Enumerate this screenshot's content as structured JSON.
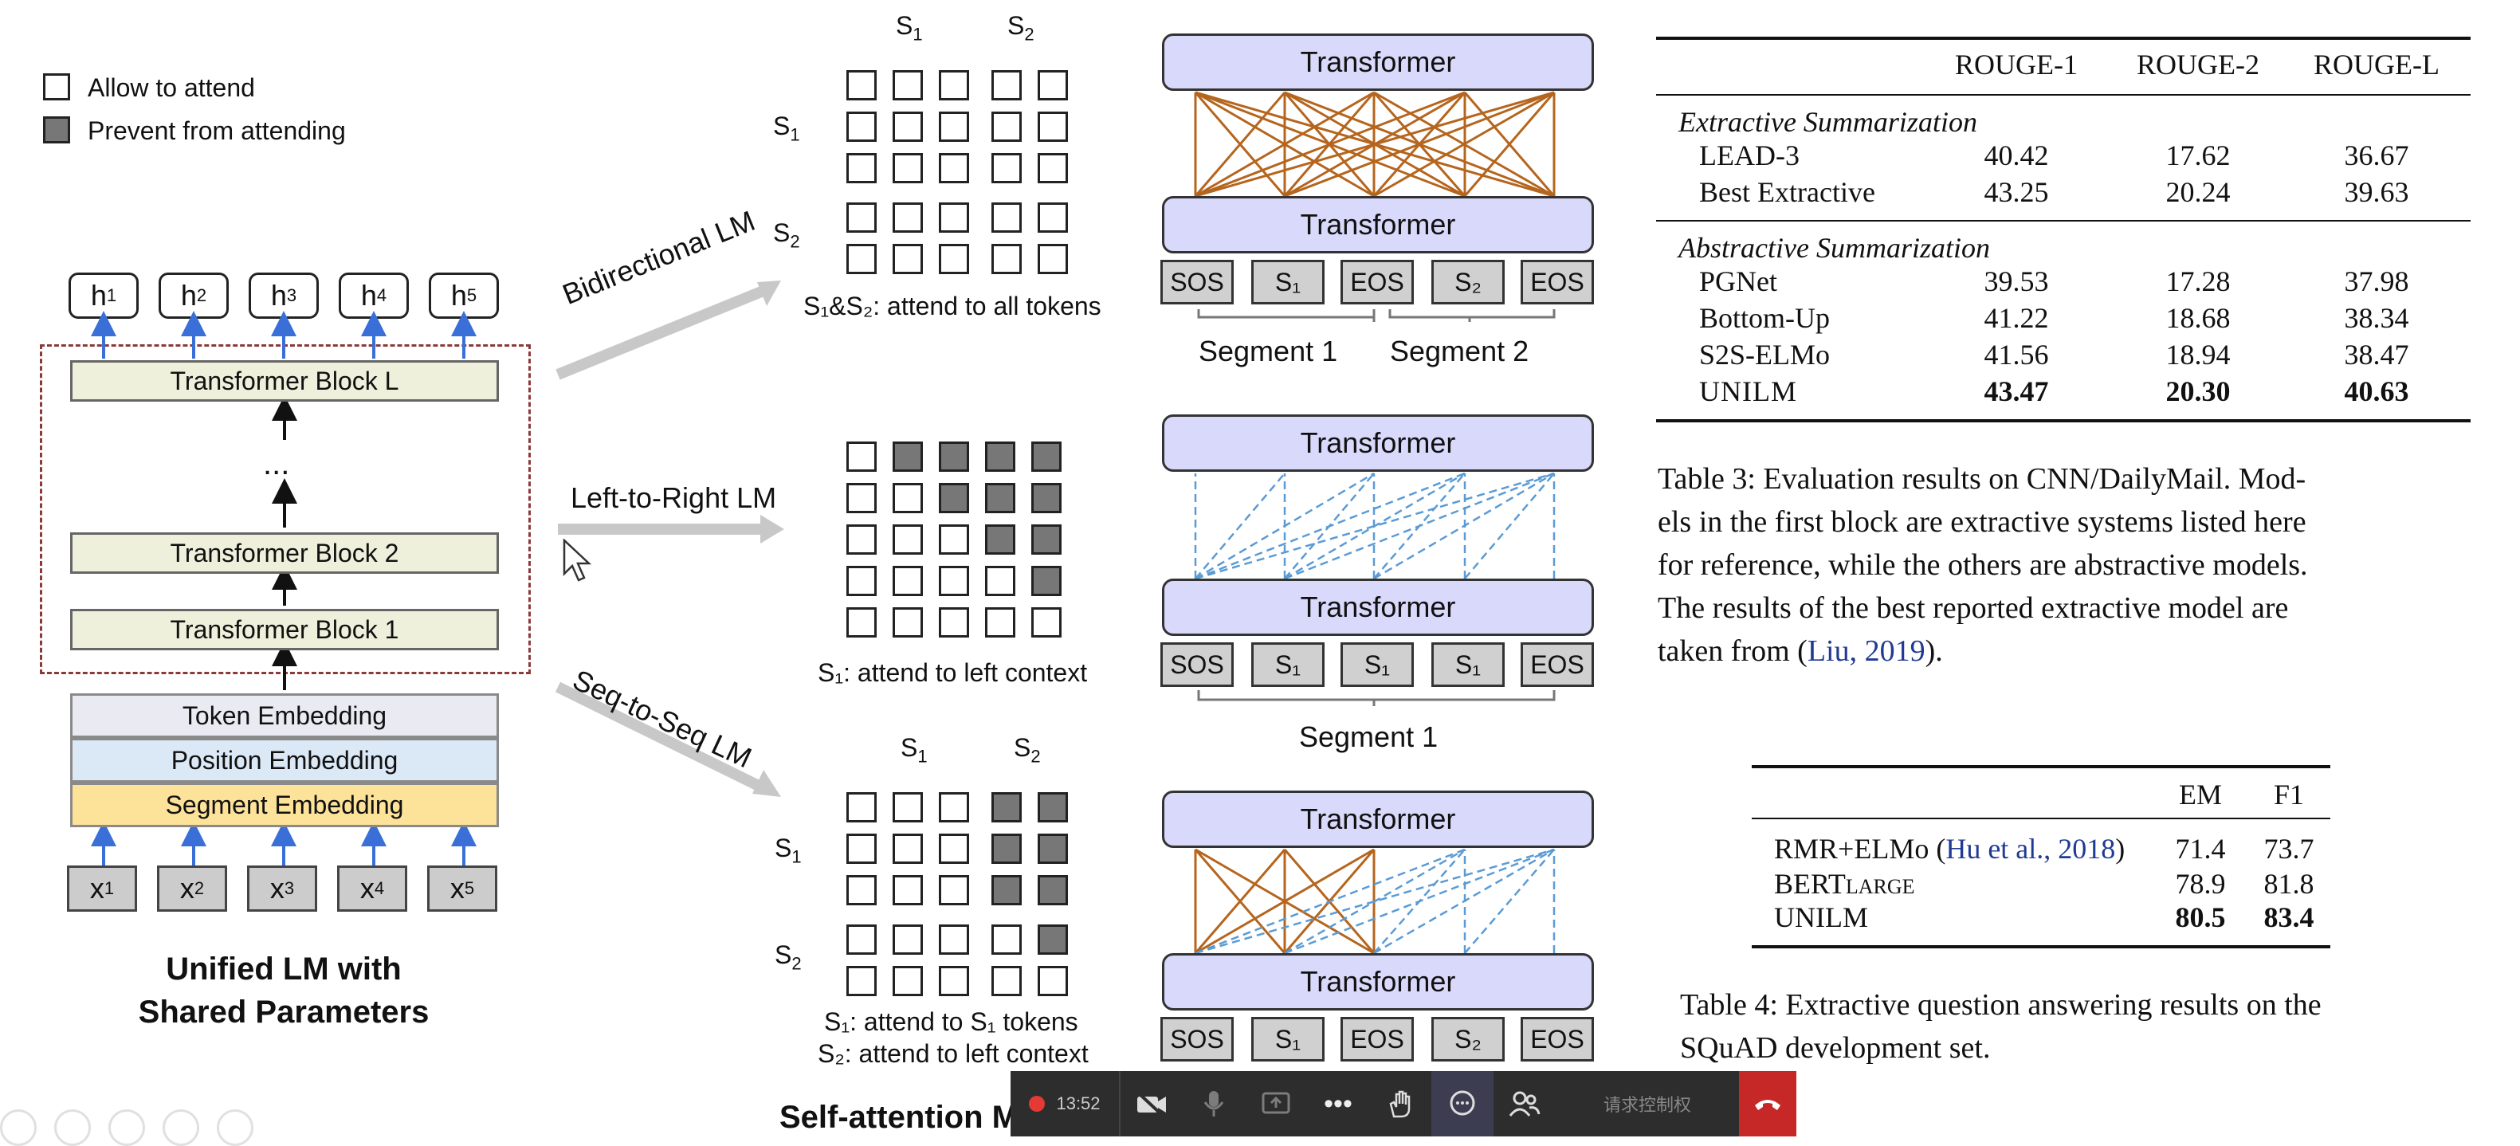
{
  "legend": {
    "allow": "Allow to attend",
    "prevent": "Prevent from attending"
  },
  "model": {
    "outputs": [
      "h",
      "h",
      "h",
      "h",
      "h"
    ],
    "output_subs": [
      "1",
      "2",
      "3",
      "4",
      "5"
    ],
    "blocks": [
      "Transformer Block L",
      "Transformer Block 2",
      "Transformer Block 1"
    ],
    "ellipsis": "...",
    "embeddings": {
      "token": "Token Embedding",
      "position": "Position Embedding",
      "segment": "Segment Embedding"
    },
    "inputs": [
      "x",
      "x",
      "x",
      "x",
      "x"
    ],
    "input_subs": [
      "1",
      "2",
      "3",
      "4",
      "5"
    ],
    "caption_line1": "Unified LM with",
    "caption_line2": "Shared Parameters"
  },
  "arrows": {
    "bidirectional": "Bidirectional LM",
    "l2r": "Left-to-Right LM",
    "s2s": "Seq-to-Seq LM"
  },
  "masks": {
    "s": "S",
    "sub1": "1",
    "sub2": "2",
    "bi_text": "S₁&S₂: attend to all tokens",
    "l2r_text": "S₁: attend to left context",
    "s2s_text1": "S₁: attend to S₁ tokens",
    "s2s_text2": "S₂: attend to left context",
    "caption": "Self-attention Masks"
  },
  "transformer": {
    "label": "Transformer",
    "bi_tokens": [
      "SOS",
      "S₁",
      "EOS",
      "S₂",
      "EOS"
    ],
    "l2r_tokens": [
      "SOS",
      "S₁",
      "S₁",
      "S₁",
      "EOS"
    ],
    "s2s_tokens": [
      "SOS",
      "S₁",
      "EOS",
      "S₂",
      "EOS"
    ],
    "segment1": "Segment 1",
    "segment2": "Segment 2",
    "colors": {
      "bidirectional": "#b5651d",
      "left_to_right": "#5b9bd5"
    }
  },
  "table3": {
    "headers": [
      "ROUGE-1",
      "ROUGE-2",
      "ROUGE-L"
    ],
    "group1": "Extractive Summarization",
    "rows1": [
      {
        "name": "LEAD-3",
        "v": [
          "40.42",
          "17.62",
          "36.67"
        ]
      },
      {
        "name": "Best Extractive",
        "v": [
          "43.25",
          "20.24",
          "39.63"
        ]
      }
    ],
    "group2": "Abstractive Summarization",
    "rows2": [
      {
        "name": "PGNet",
        "v": [
          "39.53",
          "17.28",
          "37.98"
        ]
      },
      {
        "name": "Bottom-Up",
        "v": [
          "41.22",
          "18.68",
          "38.34"
        ]
      },
      {
        "name": "S2S-ELMo",
        "v": [
          "41.56",
          "18.94",
          "38.47"
        ]
      },
      {
        "name": "UNILM",
        "v": [
          "43.47",
          "20.30",
          "40.63"
        ]
      }
    ],
    "caption_lines": [
      "Table 3: Evaluation results on CNN/DailyMail. Mod-",
      "els in the first block are extractive systems listed here",
      "for reference, while the others are abstractive models.",
      "The results of the best reported extractive model are"
    ],
    "caption_last_prefix": "taken from (",
    "caption_last_link": "Liu, 2019",
    "caption_last_suffix": ")."
  },
  "table4": {
    "headers": [
      "EM",
      "F1"
    ],
    "row1_name": "RMR+ELMo (",
    "row1_link": "Hu et al., 2018",
    "row1_suffix": ")",
    "row1_v": [
      "71.4",
      "73.7"
    ],
    "row2_name": "BERT",
    "row2_sub": "LARGE",
    "row2_v": [
      "78.9",
      "81.8"
    ],
    "row3_name": "UNILM",
    "row3_v": [
      "80.5",
      "83.4"
    ],
    "caption_line1": "Table 4: Extractive question answering results on the",
    "caption_line2": "SQuAD development set."
  },
  "toolbar": {
    "time": "13:52",
    "request_control": "请求控制权",
    "recording_color": "#e53935",
    "end_color": "#c62828"
  }
}
